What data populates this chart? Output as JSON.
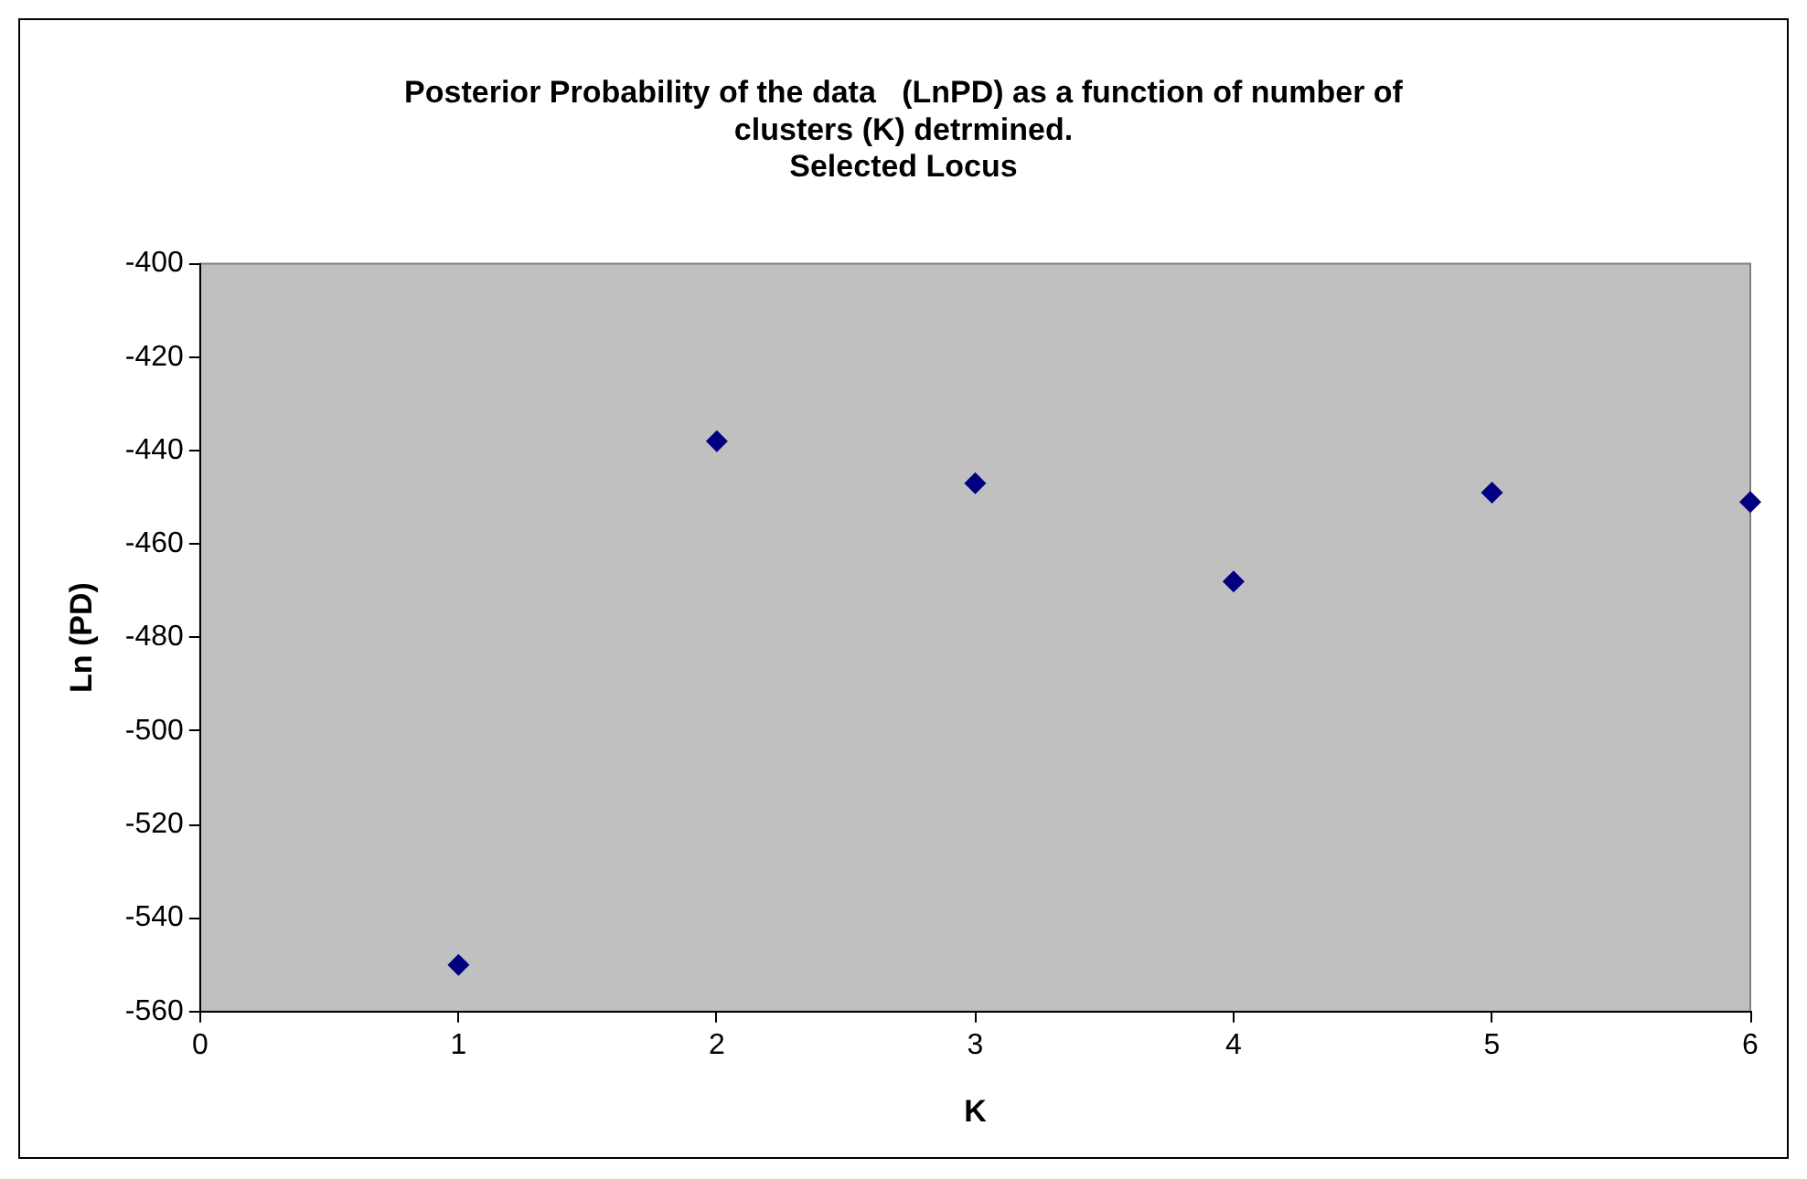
{
  "chart_data": {
    "type": "scatter",
    "title": "Posterior Probability of the data   (LnPD) as a function of number of\nclusters (K) detrmined.\nSelected Locus",
    "xlabel": "K",
    "ylabel": "Ln (PD)",
    "series": [
      {
        "x": [
          1,
          2,
          3,
          4,
          5,
          6
        ],
        "values": [
          -550,
          -438,
          -447,
          -468,
          -449,
          -451
        ],
        "color": "#000080"
      }
    ],
    "xlim": [
      0,
      6
    ],
    "xticks": [
      0,
      1,
      2,
      3,
      4,
      5,
      6
    ],
    "ylim": [
      -560,
      -400
    ],
    "yticks": [
      -560,
      -540,
      -520,
      -500,
      -480,
      -460,
      -440,
      -420,
      -400
    ],
    "grid": false,
    "legend": false,
    "marker": "diamond"
  }
}
